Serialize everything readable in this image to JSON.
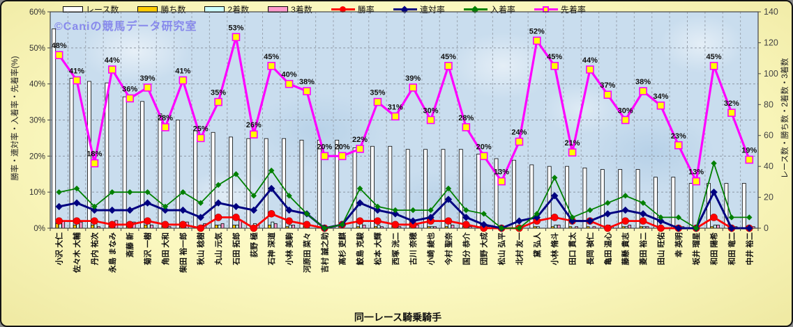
{
  "watermark": "©Caniの競馬データ研究室",
  "x_axis_title": "同一レース騎乗騎手",
  "left_axis_title": "勝率・連対率・入着率・先着率(%)",
  "right_axis_title": "レース数・勝ち数・2着数・3着数",
  "left_ticks": [
    "0%",
    "10%",
    "20%",
    "30%",
    "40%",
    "50%",
    "60%"
  ],
  "right_ticks": [
    "0",
    "20",
    "40",
    "60",
    "80",
    "100",
    "120",
    "140"
  ],
  "chart_data": {
    "type": "bar+line combo",
    "grid": "on",
    "legend_position": "top",
    "left_axis_range": [
      0,
      60
    ],
    "right_axis_range": [
      0,
      140
    ],
    "categories": [
      "小沢 大仁",
      "佐々木 大輔",
      "丹内 祐次",
      "永島 まなみ",
      "斎藤 新",
      "菊沢 一樹",
      "角田 大和",
      "柴田 裕一郎",
      "秋山 稔樹",
      "丸山 元気",
      "石田 拓郎",
      "荻野 極",
      "石神 深道",
      "小林 美駒",
      "河原田 菜々",
      "吉村 誠之助",
      "高杉 吏麒",
      "鮫島 克駿",
      "松本 大輝",
      "西塚 洸二",
      "古川 奈穂",
      "小崎 綾也",
      "今村 聖奈",
      "国分 恭介",
      "団野 大成",
      "松山 弘平",
      "北村 友一",
      "黛 弘人",
      "小林 脩斗",
      "田口 貫太",
      "長岡 禎仁",
      "亀田 温心",
      "藤懸 貴志",
      "菱田 裕二",
      "田山 旺佑",
      "幸 英明",
      "坂井 瑠星",
      "和田 陽希",
      "和田 竜二",
      "中井 裕二"
    ],
    "series": [
      {
        "name": "レース数",
        "key": "race-count",
        "type": "bar",
        "axis": "right",
        "color": "#FFFFFF",
        "values": [
          129,
          97,
          95,
          94,
          85,
          82,
          74,
          70,
          63,
          62,
          59,
          58,
          58,
          58,
          57,
          57,
          57,
          52,
          53,
          53,
          51,
          51,
          51,
          51,
          48,
          45,
          44,
          41,
          40,
          40,
          39,
          38,
          38,
          38,
          33,
          33,
          29,
          29,
          29,
          29
        ]
      },
      {
        "name": "勝ち数",
        "key": "win-count",
        "type": "bar",
        "axis": "right",
        "color": "#FFCC00",
        "values": [
          3,
          2,
          2,
          1,
          1,
          2,
          1,
          1,
          0,
          2,
          2,
          0,
          2,
          1,
          1,
          0,
          1,
          1,
          1,
          1,
          1,
          1,
          1,
          1,
          0,
          0,
          0,
          1,
          1,
          1,
          1,
          0,
          1,
          1,
          0,
          0,
          0,
          1,
          0,
          0
        ]
      },
      {
        "name": "2着数",
        "key": "second-count",
        "type": "bar",
        "axis": "right",
        "color": "#CCFFFF",
        "values": [
          5,
          5,
          3,
          4,
          3,
          4,
          3,
          3,
          2,
          2,
          2,
          3,
          4,
          2,
          2,
          0,
          0,
          3,
          2,
          2,
          1,
          1,
          3,
          1,
          0,
          0,
          1,
          1,
          2,
          0,
          0,
          2,
          1,
          1,
          1,
          0,
          0,
          2,
          0,
          0
        ]
      },
      {
        "name": "3着数",
        "key": "third-count",
        "type": "bar",
        "axis": "right",
        "color": "#FF99CC",
        "values": [
          5,
          4,
          1,
          5,
          4,
          2,
          1,
          4,
          3,
          3,
          5,
          2,
          3,
          2,
          0,
          0,
          0,
          2,
          1,
          1,
          2,
          1,
          2,
          1,
          1,
          0,
          0,
          0,
          2,
          1,
          1,
          1,
          2,
          1,
          0,
          1,
          0,
          2,
          1,
          1
        ]
      },
      {
        "name": "勝率",
        "key": "win-rate",
        "type": "line",
        "axis": "left",
        "color": "#FF0000",
        "marker": "circle",
        "values": [
          2,
          2,
          2,
          1,
          1,
          2,
          1,
          1,
          0,
          3,
          3,
          0,
          4,
          2,
          1,
          0,
          1,
          2,
          2,
          1,
          1,
          2,
          2,
          1,
          0,
          0,
          0,
          2,
          3,
          2,
          2,
          0,
          2,
          2,
          0,
          0,
          0,
          3,
          0,
          0
        ]
      },
      {
        "name": "連対率",
        "key": "top2-rate",
        "type": "line",
        "axis": "left",
        "color": "#000080",
        "marker": "diamond",
        "values": [
          6,
          7,
          5,
          5,
          5,
          7,
          5,
          5,
          3,
          7,
          6,
          5,
          11,
          5,
          4,
          0,
          1,
          7,
          5,
          4,
          2,
          3,
          8,
          3,
          1,
          0,
          2,
          3,
          9,
          2,
          2,
          4,
          5,
          4,
          2,
          0,
          0,
          10,
          0,
          0
        ]
      },
      {
        "name": "入着率",
        "key": "top3-rate",
        "type": "line",
        "axis": "left",
        "color": "#008000",
        "marker": "diamond-small",
        "values": [
          10,
          11,
          6,
          10,
          10,
          10,
          6,
          10,
          7,
          12,
          15,
          9,
          16,
          9,
          4,
          0,
          1,
          11,
          6,
          5,
          5,
          5,
          11,
          5,
          4,
          0,
          0,
          4,
          14,
          3,
          5,
          7,
          9,
          7,
          3,
          3,
          0,
          18,
          3,
          3
        ]
      },
      {
        "name": "先着率",
        "key": "lead-rate",
        "type": "line",
        "axis": "left",
        "color": "#FF00FF",
        "marker": "square-yellow",
        "show_labels": true,
        "values": [
          48,
          41,
          18,
          44,
          36,
          39,
          28,
          41,
          25,
          35,
          53,
          26,
          45,
          40,
          38,
          20,
          20,
          22,
          35,
          31,
          39,
          30,
          45,
          28,
          20,
          13,
          24,
          52,
          45,
          21,
          44,
          37,
          30,
          38,
          34,
          23,
          13,
          45,
          32,
          19
        ]
      }
    ]
  }
}
